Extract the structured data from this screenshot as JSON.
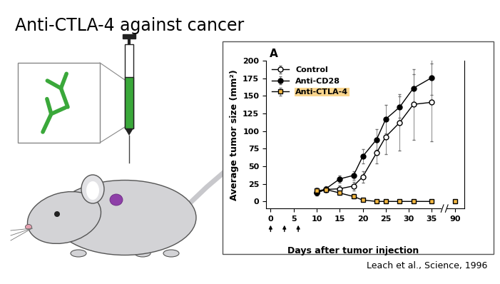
{
  "slide": {
    "title": "Anti-CTLA-4 against cancer",
    "citation": "Leach et al., Science, 1996"
  },
  "chart_data": [
    {
      "type": "line",
      "panel": "A",
      "x_label": "Days after tumor injection",
      "y_label": "Average tumor size (mm²)",
      "xlim": [
        -1,
        37
      ],
      "xticks": [
        0,
        5,
        10,
        15,
        20,
        25,
        30,
        35
      ],
      "ylim": [
        -10,
        200
      ],
      "yticks": [
        0,
        25,
        50,
        75,
        100,
        125,
        150,
        175,
        200
      ],
      "injection_days": [
        0,
        3,
        6
      ],
      "legend": "upper left",
      "series": [
        {
          "name": "Control",
          "color": "#000000",
          "marker": "open_circle",
          "line_style": "solid",
          "x": [
            10,
            12,
            15,
            18,
            20,
            23,
            25,
            28,
            31,
            35
          ],
          "values": [
            12,
            17,
            18,
            22,
            35,
            69,
            92,
            112,
            138,
            141
          ],
          "errors": [
            4,
            4,
            5,
            6,
            8,
            15,
            25,
            40,
            50,
            55
          ]
        },
        {
          "name": "Anti-CD28",
          "color": "#000000",
          "marker": "circle",
          "line_style": "solid",
          "x": [
            10,
            12,
            15,
            18,
            20,
            23,
            25,
            28,
            31,
            35
          ],
          "values": [
            12,
            18,
            32,
            37,
            64,
            88,
            117,
            134,
            161,
            176
          ],
          "errors": [
            4,
            4,
            5,
            6,
            10,
            15,
            20,
            15,
            20,
            25
          ]
        },
        {
          "name": "Anti-CTLA-4",
          "color": "#f5b942",
          "marker": "square",
          "line_style": "solid",
          "x": [
            10,
            12,
            15,
            18,
            20,
            23,
            25,
            28,
            31,
            35
          ],
          "values": [
            15,
            17,
            12,
            7,
            2,
            0,
            0,
            0,
            0,
            0
          ],
          "errors": [
            5,
            4,
            3,
            3,
            2,
            1,
            1,
            1,
            1,
            1
          ]
        }
      ]
    },
    {
      "type": "line",
      "tick_labels": "x",
      "xlim": [
        88,
        92
      ],
      "xticks": [
        90
      ],
      "ylim": [
        -10,
        200
      ],
      "series": [
        {
          "name": "Anti-CTLA-4",
          "color": "#f5b942",
          "marker": "square",
          "line_style": "solid",
          "x": [
            90
          ],
          "values": [
            0
          ],
          "errors": [
            1
          ]
        }
      ]
    }
  ]
}
